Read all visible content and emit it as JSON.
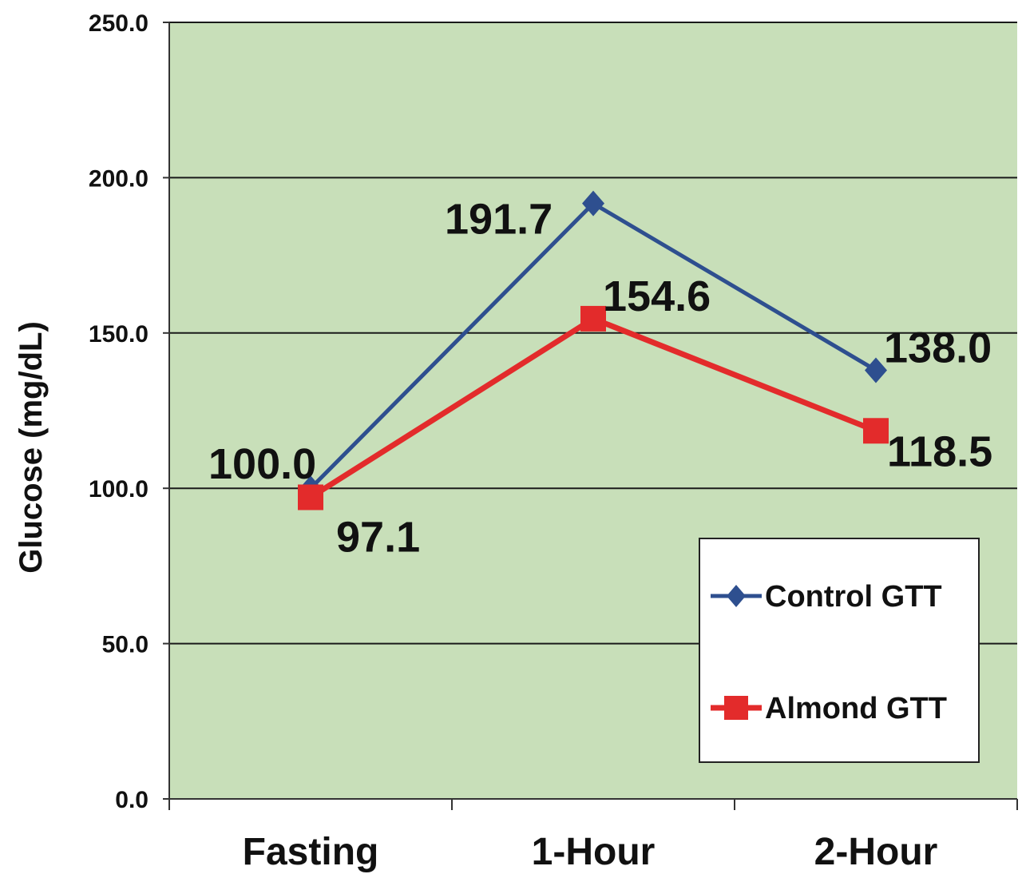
{
  "chart_data": {
    "type": "line",
    "title": "",
    "xlabel": "",
    "ylabel": "Glucose (mg/dL)",
    "categories": [
      "Fasting",
      "1-Hour",
      "2-Hour"
    ],
    "ylim": [
      0,
      250
    ],
    "yticks": [
      "0.0",
      "50.0",
      "100.0",
      "150.0",
      "200.0",
      "250.0"
    ],
    "grid": true,
    "legend_position": "bottom-right",
    "series": [
      {
        "name": "Control GTT",
        "values": [
          100.0,
          191.7,
          138.0
        ],
        "labels": [
          "100.0",
          "191.7",
          "138.0"
        ],
        "color": "#2e4f8f",
        "marker": "diamond"
      },
      {
        "name": "Almond GTT",
        "values": [
          97.1,
          154.6,
          118.5
        ],
        "labels": [
          "97.1",
          "154.6",
          "118.5"
        ],
        "color": "#e32b2b",
        "marker": "square"
      }
    ],
    "colors": {
      "plot_background": "#c8dfb9",
      "gridline": "#1a1a1a",
      "axis": "#333333"
    }
  }
}
